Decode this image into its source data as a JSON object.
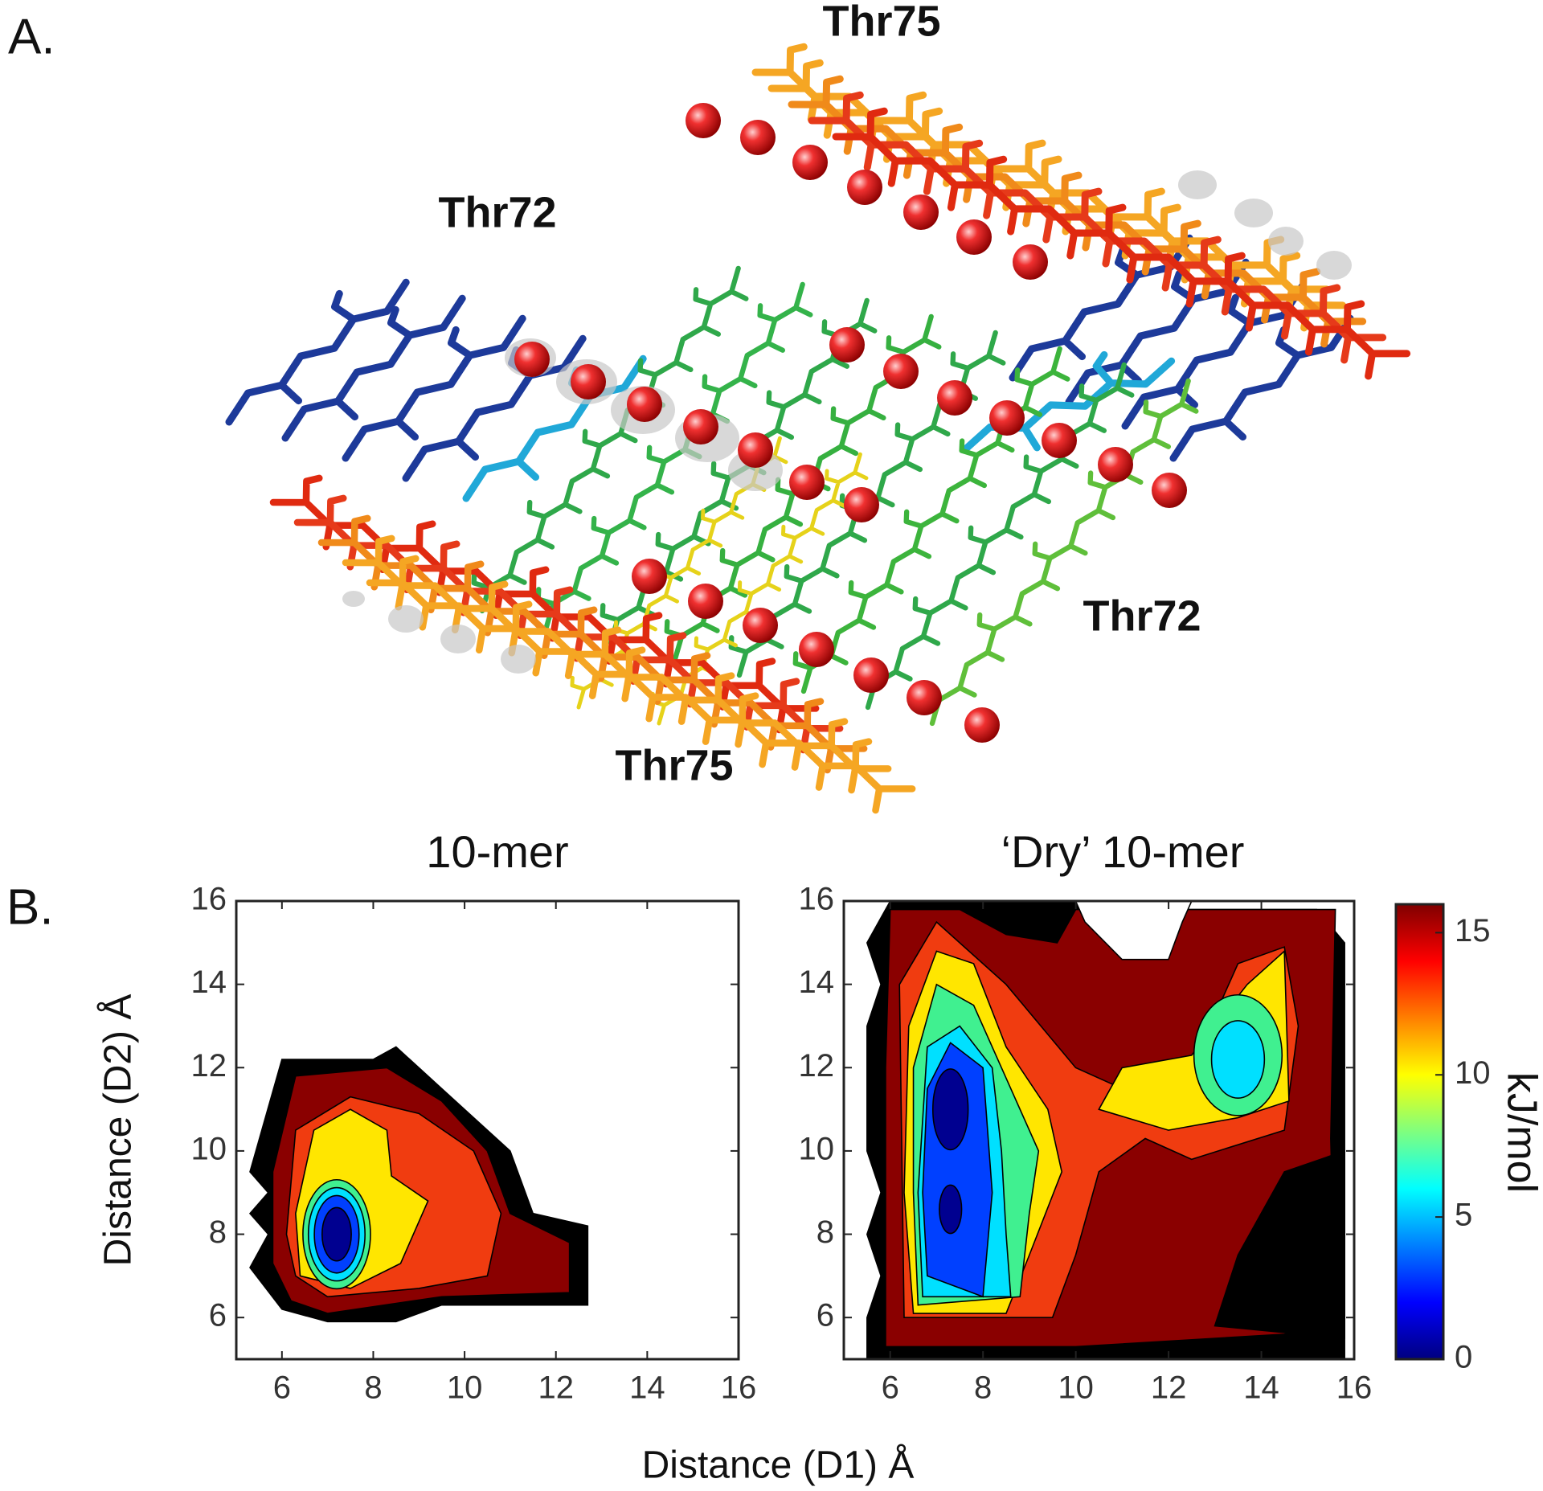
{
  "panel_a": {
    "label": "A.",
    "annotations": [
      "Thr75",
      "Thr72",
      "Thr72",
      "Thr75"
    ]
  },
  "panel_b": {
    "label": "B.",
    "xlabel": "Distance (D1) Å",
    "ylabel": "Distance (D2) Å"
  },
  "chart_data": [
    {
      "type": "contour",
      "title": "10-mer",
      "xlim": [
        5,
        16
      ],
      "ylim": [
        5,
        16
      ],
      "xticks": [
        6,
        8,
        10,
        12,
        14,
        16
      ],
      "yticks": [
        6,
        8,
        10,
        12,
        14,
        16
      ]
    },
    {
      "type": "contour",
      "title": "‘Dry’ 10-mer",
      "xlim": [
        5,
        16
      ],
      "ylim": [
        5,
        16
      ],
      "xticks": [
        6,
        8,
        10,
        12,
        14,
        16
      ],
      "yticks": [
        6,
        8,
        10,
        12,
        14,
        16
      ],
      "colorbar": {
        "label": "kJ/mol",
        "lim": [
          0,
          16
        ],
        "ticks": [
          0,
          5,
          10,
          15
        ],
        "colors": [
          "#00007f",
          "#0000ff",
          "#007fff",
          "#00ffff",
          "#7fff7f",
          "#ffff00",
          "#ff7f00",
          "#ff0000",
          "#7f0000"
        ]
      }
    }
  ]
}
